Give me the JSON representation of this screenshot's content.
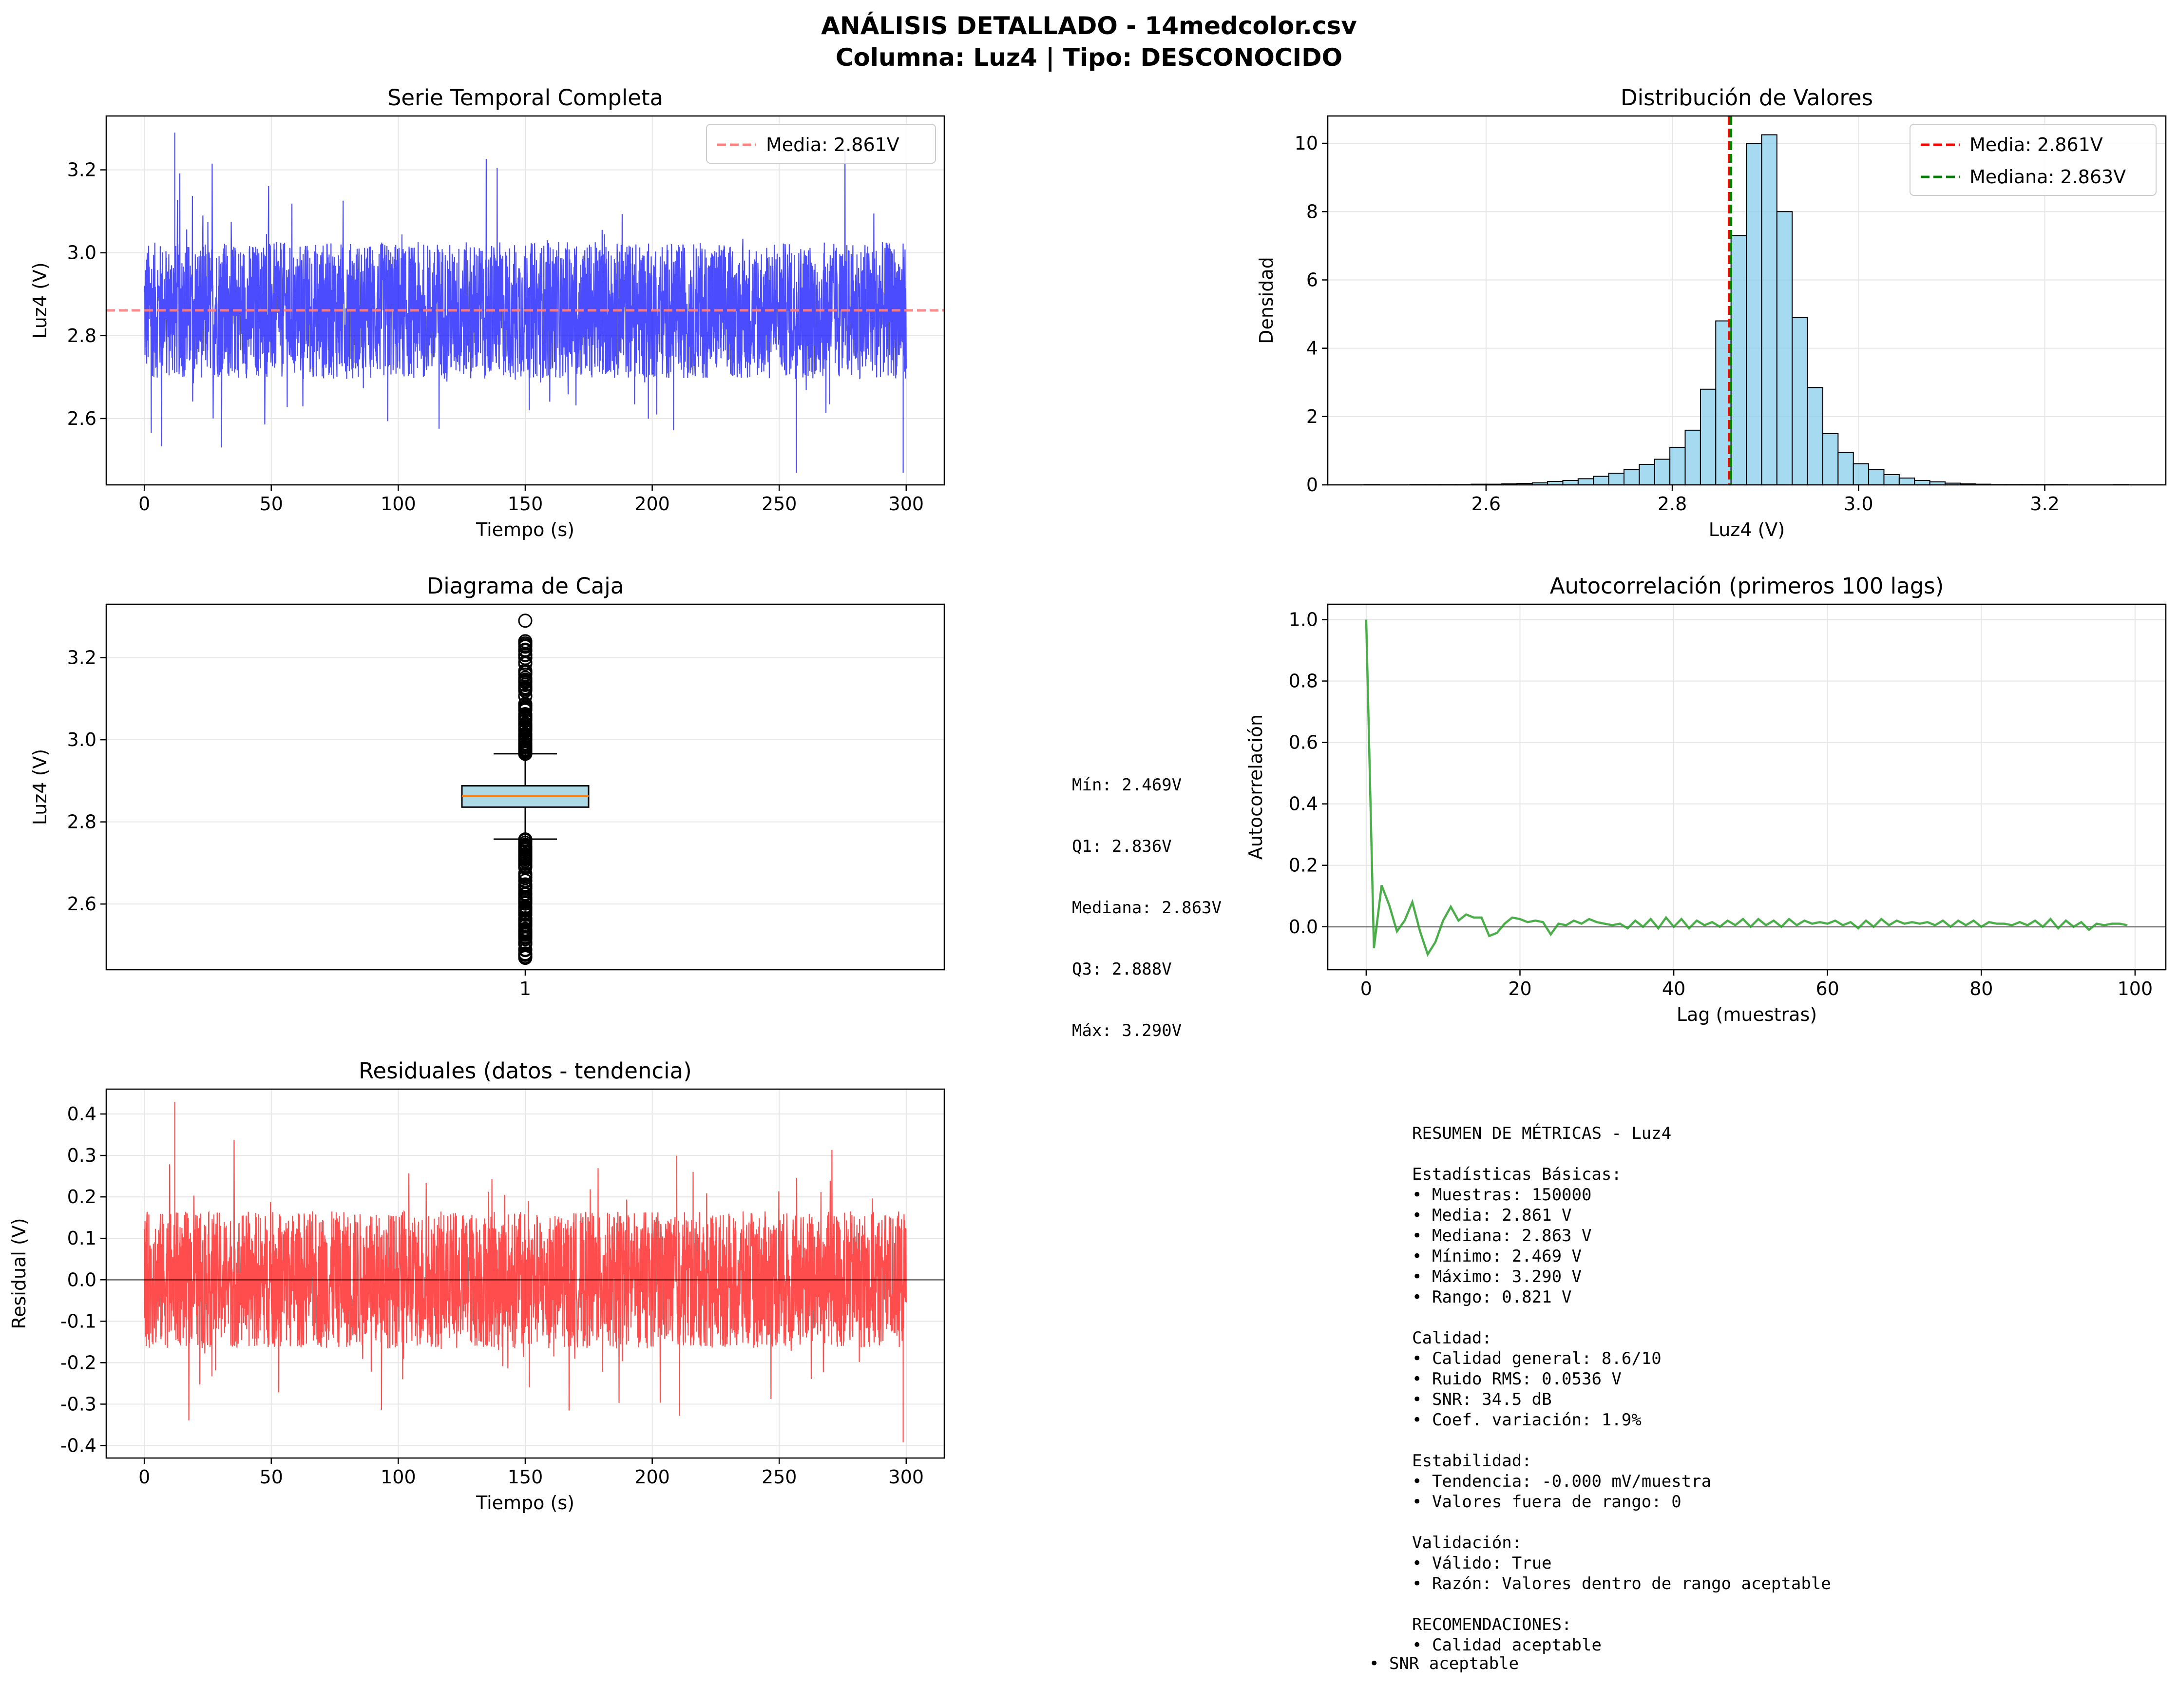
{
  "figure": {
    "title_line1": "ANÁLISIS DETALLADO - 14medcolor.csv",
    "title_line2": "Columna: Luz4 | Tipo: DESCONOCIDO"
  },
  "colors": {
    "series_blue": "#0000ff",
    "mean_line_light": "#ff7f7f",
    "hist_fill": "#87ceeb",
    "mean_red": "#ff0000",
    "median_green": "#008000",
    "box_fill": "#add8e6",
    "box_median": "#ff7f0e",
    "acf_green": "#2ca02c",
    "residual_red": "#ff0000",
    "grid": "#e6e6e6"
  },
  "chart_data": [
    {
      "type": "line",
      "title": "Serie Temporal Completa",
      "xlabel": "Tiempo (s)",
      "ylabel": "Luz4 (V)",
      "xlim": [
        -15,
        315
      ],
      "ylim": [
        2.44,
        3.33
      ],
      "xticks": [
        0,
        50,
        100,
        150,
        200,
        250,
        300
      ],
      "yticks": [
        2.6,
        2.8,
        3.0,
        3.2
      ],
      "series": [
        {
          "name": "",
          "kind": "noise_band",
          "x_range": [
            0,
            300
          ],
          "center": 2.861,
          "band_low": 2.7,
          "band_high": 3.03,
          "peak_high": 3.29,
          "peak_low": 2.469
        }
      ],
      "hlines": [
        {
          "y": 2.861,
          "label": "Media: 2.861V",
          "style": "dashed"
        }
      ],
      "grid": true,
      "legend_position": "upper right"
    },
    {
      "type": "bar",
      "title": "Distribución de Valores",
      "xlabel": "Luz4 (V)",
      "ylabel": "Densidad",
      "xlim": [
        2.43,
        3.33
      ],
      "ylim": [
        0,
        10.8
      ],
      "xticks": [
        2.6,
        2.8,
        3.0,
        3.2
      ],
      "yticks": [
        0,
        2,
        4,
        6,
        8,
        10
      ],
      "bin_start": 2.469,
      "bin_width": 0.01642,
      "values": [
        0.01,
        0.0,
        0.0,
        0.01,
        0.01,
        0.01,
        0.01,
        0.02,
        0.02,
        0.03,
        0.04,
        0.06,
        0.1,
        0.13,
        0.18,
        0.25,
        0.34,
        0.45,
        0.6,
        0.75,
        1.1,
        1.6,
        2.8,
        4.8,
        7.3,
        10.0,
        10.25,
        8.0,
        4.9,
        2.85,
        1.5,
        0.95,
        0.62,
        0.45,
        0.3,
        0.2,
        0.13,
        0.09,
        0.05,
        0.03,
        0.02,
        0.01,
        0.01,
        0.01,
        0.01,
        0.01,
        0.0,
        0.0,
        0.0,
        0.01
      ],
      "vlines": [
        {
          "x": 2.861,
          "label": "Media: 2.861V"
        },
        {
          "x": 2.863,
          "label": "Mediana: 2.863V"
        }
      ],
      "grid": true,
      "legend_position": "upper right"
    },
    {
      "type": "box",
      "title": "Diagrama de Caja",
      "ylabel": "Luz4 (V)",
      "xtick_label": "1",
      "ylim": [
        2.44,
        3.33
      ],
      "yticks": [
        2.6,
        2.8,
        3.0,
        3.2
      ],
      "whisker_low": 2.758,
      "q1": 2.836,
      "median": 2.863,
      "q3": 2.888,
      "whisker_high": 2.966,
      "outliers_low_range": [
        2.469,
        2.758
      ],
      "outliers_high_range": [
        2.966,
        3.24
      ],
      "outliers_extra": [
        3.29
      ],
      "grid": true
    },
    {
      "type": "line",
      "title": "Autocorrelación (primeros 100 lags)",
      "xlabel": "Lag (muestras)",
      "ylabel": "Autocorrelación",
      "xlim": [
        -5,
        104
      ],
      "ylim": [
        -0.14,
        1.05
      ],
      "xticks": [
        0,
        20,
        40,
        60,
        80,
        100
      ],
      "yticks": [
        0.0,
        0.2,
        0.4,
        0.6,
        0.8,
        1.0
      ],
      "x_start": 0,
      "values": [
        1.0,
        -0.07,
        0.135,
        0.07,
        -0.015,
        0.02,
        0.08,
        -0.015,
        -0.09,
        -0.05,
        0.02,
        0.065,
        0.02,
        0.04,
        0.03,
        0.03,
        -0.03,
        -0.02,
        0.01,
        0.03,
        0.025,
        0.015,
        0.02,
        0.015,
        -0.025,
        0.01,
        0.005,
        0.02,
        0.01,
        0.025,
        0.015,
        0.01,
        0.005,
        0.01,
        -0.005,
        0.02,
        0.0,
        0.025,
        -0.005,
        0.03,
        0.0,
        0.025,
        -0.005,
        0.02,
        0.005,
        0.015,
        0.0,
        0.02,
        0.005,
        0.025,
        0.0,
        0.025,
        0.005,
        0.02,
        0.0,
        0.025,
        0.005,
        0.02,
        0.01,
        0.015,
        0.01,
        0.02,
        0.005,
        0.015,
        -0.005,
        0.02,
        0.0,
        0.025,
        0.005,
        0.02,
        0.01,
        0.015,
        0.01,
        0.015,
        0.005,
        0.02,
        0.0,
        0.02,
        0.005,
        0.02,
        0.0,
        0.015,
        0.01,
        0.01,
        0.005,
        0.015,
        0.005,
        0.02,
        0.0,
        0.025,
        -0.005,
        0.02,
        0.0,
        0.015,
        -0.01,
        0.01,
        0.005,
        0.01,
        0.01,
        0.005
      ],
      "hlines": [
        {
          "y": 0.0
        }
      ],
      "grid": true
    },
    {
      "type": "line",
      "title": "Residuales (datos - tendencia)",
      "xlabel": "Tiempo (s)",
      "ylabel": "Residual (V)",
      "xlim": [
        -15,
        315
      ],
      "ylim": [
        -0.43,
        0.46
      ],
      "xticks": [
        0,
        50,
        100,
        150,
        200,
        250,
        300
      ],
      "yticks": [
        -0.4,
        -0.3,
        -0.2,
        -0.1,
        0.0,
        0.1,
        0.2,
        0.3,
        0.4
      ],
      "series": [
        {
          "name": "",
          "kind": "noise_band",
          "x_range": [
            0,
            300
          ],
          "center": 0.0,
          "band_low": -0.16,
          "band_high": 0.17,
          "peak_high": 0.429,
          "peak_low": -0.392
        }
      ],
      "hlines": [
        {
          "y": 0.0
        }
      ],
      "grid": true
    }
  ],
  "box_stats_text": [
    "Mín: 2.469V",
    "Q1: 2.836V",
    "Mediana: 2.863V",
    "Q3: 2.888V",
    "Máx: 3.290V"
  ],
  "summary_text": [
    "RESUMEN DE MÉTRICAS - Luz4",
    "",
    "Estadísticas Básicas:",
    "• Muestras: 150000",
    "• Media: 2.861 V",
    "• Mediana: 2.863 V",
    "• Mínimo: 2.469 V",
    "• Máximo: 3.290 V",
    "• Rango: 0.821 V",
    "",
    "Calidad:",
    "• Calidad general: 8.6/10",
    "• Ruido RMS: 0.0536 V",
    "• SNR: 34.5 dB",
    "• Coef. variación: 1.9%",
    "",
    "Estabilidad:",
    "• Tendencia: -0.000 mV/muestra",
    "• Valores fuera de rango: 0",
    "",
    "Validación:",
    "• Válido: True",
    "• Razón: Valores dentro de rango aceptable",
    "",
    "RECOMENDACIONES:",
    "• Calidad aceptable"
  ],
  "summary_tail": "• SNR aceptable"
}
